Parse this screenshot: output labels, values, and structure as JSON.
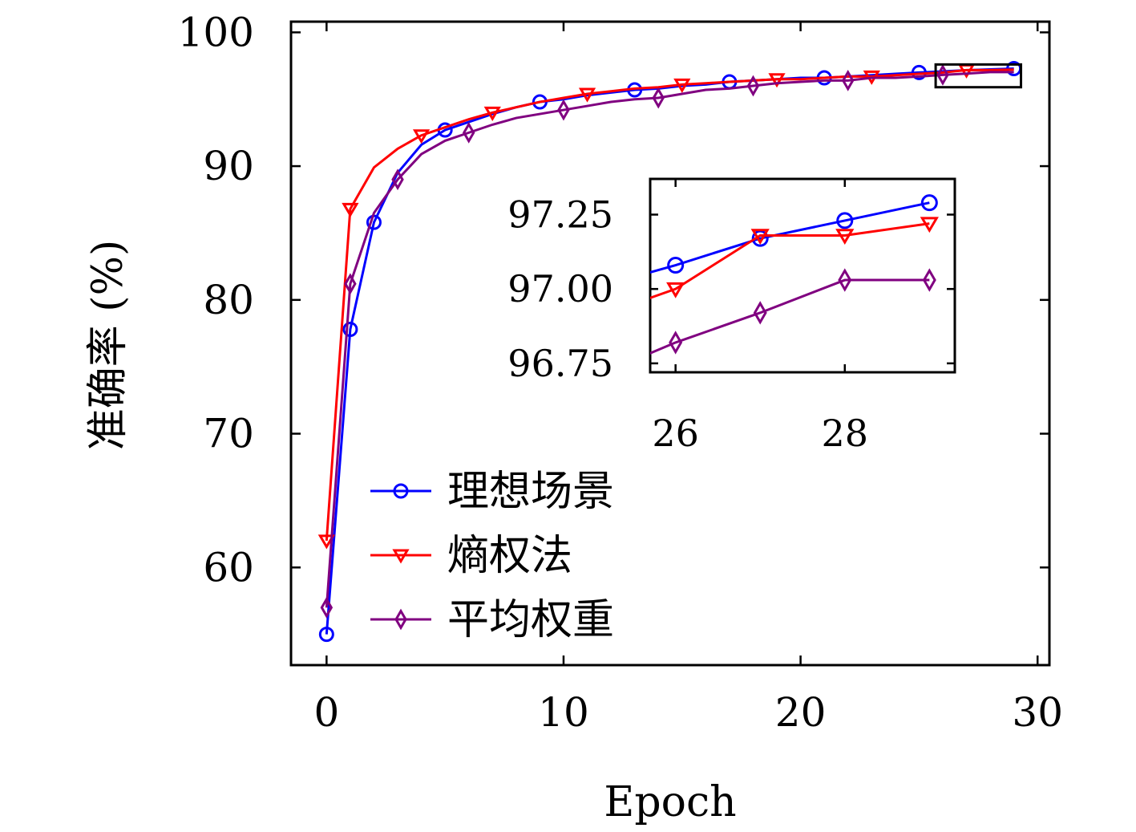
{
  "chart_data": {
    "type": "line",
    "title": "",
    "xlabel": "Epoch",
    "ylabel": "准确率 (%)",
    "xlim": [
      -1.5,
      30.5
    ],
    "ylim": [
      52.7,
      100.8
    ],
    "xticks": [
      0,
      10,
      20,
      30
    ],
    "yticks": [
      60,
      70,
      80,
      90,
      100
    ],
    "grid": false,
    "legend_position": "bottom-left",
    "series": [
      {
        "name": "理想场景",
        "color": "#0000ff",
        "marker": "circle",
        "x": [
          0,
          1,
          2,
          3,
          4,
          5,
          6,
          7,
          8,
          9,
          10,
          11,
          12,
          13,
          14,
          15,
          16,
          17,
          18,
          19,
          20,
          21,
          22,
          23,
          24,
          25,
          26,
          27,
          28,
          29
        ],
        "y": [
          55.0,
          77.8,
          85.8,
          89.5,
          91.6,
          92.7,
          93.3,
          93.9,
          94.4,
          94.8,
          95.0,
          95.3,
          95.5,
          95.7,
          95.8,
          96.0,
          96.1,
          96.3,
          96.4,
          96.5,
          96.6,
          96.6,
          96.7,
          96.8,
          96.9,
          97.0,
          97.08,
          97.17,
          97.23,
          97.29
        ]
      },
      {
        "name": "熵权法",
        "color": "#ff0000",
        "marker": "triangle-down",
        "x": [
          0,
          1,
          2,
          3,
          4,
          5,
          6,
          7,
          8,
          9,
          10,
          11,
          12,
          13,
          14,
          15,
          16,
          17,
          18,
          19,
          20,
          21,
          22,
          23,
          24,
          25,
          26,
          27,
          28,
          29
        ],
        "y": [
          62.0,
          86.8,
          89.9,
          91.3,
          92.3,
          92.9,
          93.5,
          94.0,
          94.4,
          94.8,
          95.1,
          95.4,
          95.6,
          95.8,
          95.9,
          96.1,
          96.2,
          96.3,
          96.4,
          96.5,
          96.5,
          96.6,
          96.7,
          96.7,
          96.8,
          96.9,
          97.0,
          97.18,
          97.18,
          97.22
        ]
      },
      {
        "name": "平均权重",
        "color": "#800080",
        "marker": "diamond",
        "x": [
          0,
          1,
          2,
          3,
          4,
          5,
          6,
          7,
          8,
          9,
          10,
          11,
          12,
          13,
          14,
          15,
          16,
          17,
          18,
          19,
          20,
          21,
          22,
          23,
          24,
          25,
          26,
          27,
          28,
          29
        ],
        "y": [
          57.0,
          81.2,
          86.5,
          89.0,
          90.9,
          91.9,
          92.5,
          93.1,
          93.6,
          93.9,
          94.2,
          94.5,
          94.8,
          95.0,
          95.1,
          95.4,
          95.7,
          95.8,
          96.0,
          96.2,
          96.3,
          96.4,
          96.4,
          96.6,
          96.6,
          96.7,
          96.82,
          96.92,
          97.03,
          97.03
        ]
      }
    ],
    "inset": {
      "xlim": [
        25.7,
        29.3
      ],
      "ylim": [
        96.72,
        97.37
      ],
      "xticks": [
        26,
        28
      ],
      "yticks": [
        96.75,
        97.0,
        97.25
      ],
      "ytick_labels": [
        "96.75",
        "97.00",
        "97.25"
      ],
      "source_box_xlim": [
        25.7,
        29.3
      ],
      "source_box_ylim": [
        95.9,
        97.6
      ]
    }
  }
}
